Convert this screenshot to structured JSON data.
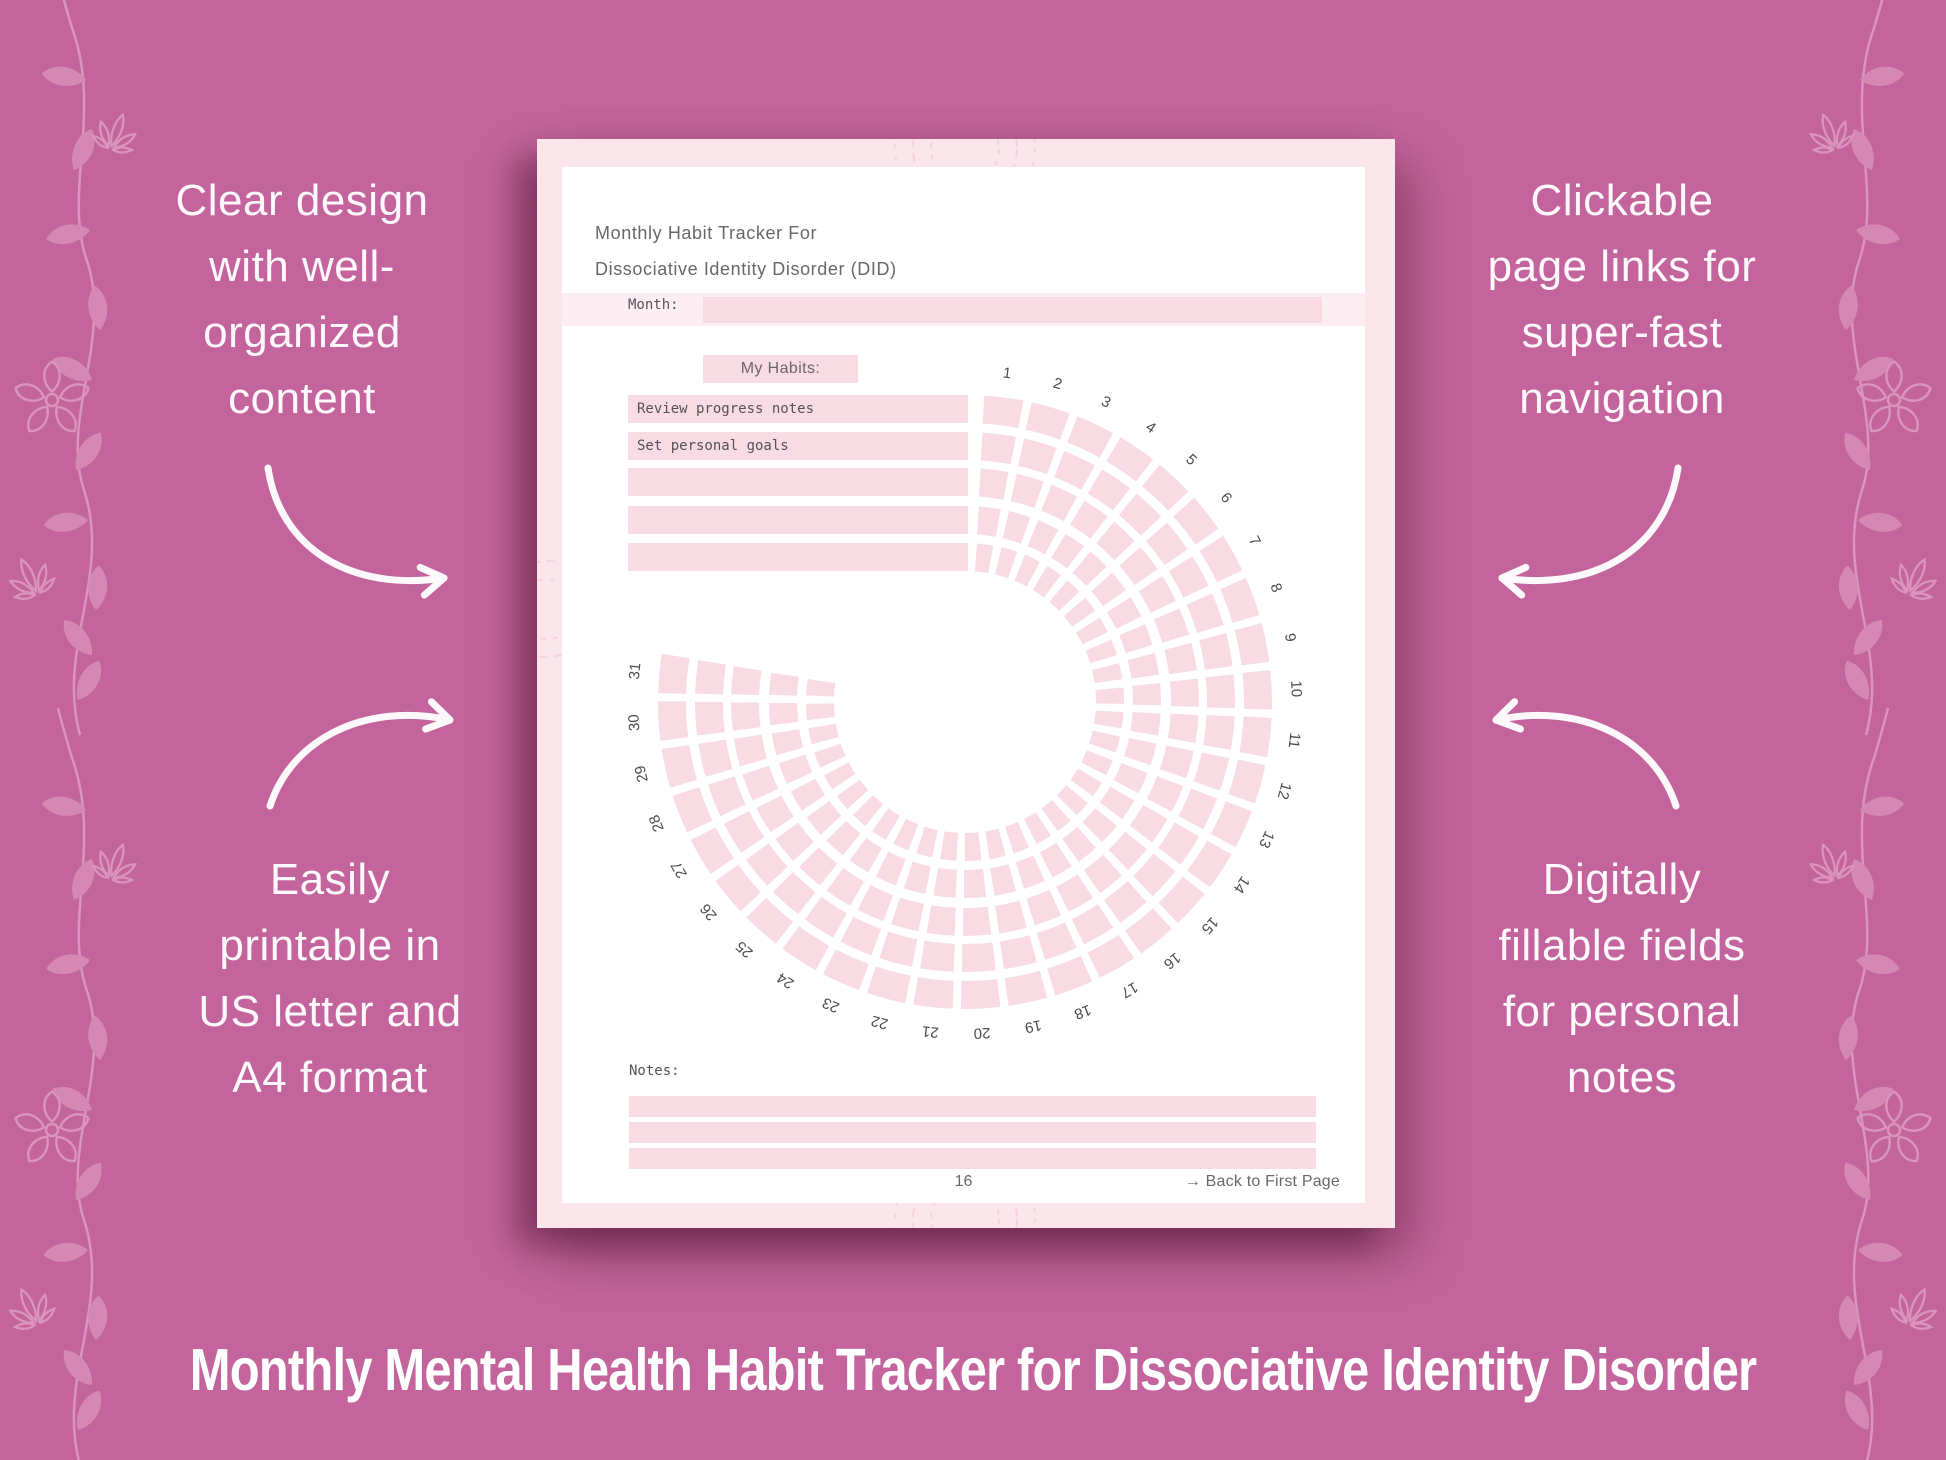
{
  "left_column": {
    "blocks": [
      {
        "lines": [
          "Clear design",
          "with well-",
          "organized",
          "content"
        ]
      },
      {
        "lines": [
          "Easily",
          "printable in",
          "US letter and",
          "A4 format"
        ]
      }
    ]
  },
  "right_column": {
    "blocks": [
      {
        "lines": [
          "Clickable",
          "page links for",
          "super-fast",
          "navigation"
        ]
      },
      {
        "lines": [
          "Digitally",
          "fillable fields",
          "for personal",
          "notes"
        ]
      }
    ]
  },
  "planner": {
    "title_line1": "Monthly Habit Tracker For",
    "title_line2": "Dissociative Identity Disorder (DID)",
    "month_label": "Month:",
    "month_value": "",
    "habits_header": "My Habits:",
    "habits": [
      "Review progress notes",
      "Set personal goals",
      "",
      "",
      ""
    ],
    "days": [
      1,
      2,
      3,
      4,
      5,
      6,
      7,
      8,
      9,
      10,
      11,
      12,
      13,
      14,
      15,
      16,
      17,
      18,
      19,
      20,
      21,
      22,
      23,
      24,
      25,
      26,
      27,
      28,
      29,
      30,
      31
    ],
    "notes_label": "Notes:",
    "notes_rows": 3,
    "page_number": "16",
    "back_link_label": "→ Back to First Page"
  },
  "banner": {
    "title": "Monthly Mental Health Habit Tracker for Dissociative Identity Disorder"
  },
  "colors": {
    "background": "#c4649c",
    "frame_pink": "#fbe6ec",
    "cell_pink": "#f8dbe3",
    "band_pink": "#fdeef3",
    "page_white": "#ffffff",
    "ink_gray": "#6b666d",
    "mono_ink": "#55525b",
    "white_text": "#fdf8fb"
  }
}
